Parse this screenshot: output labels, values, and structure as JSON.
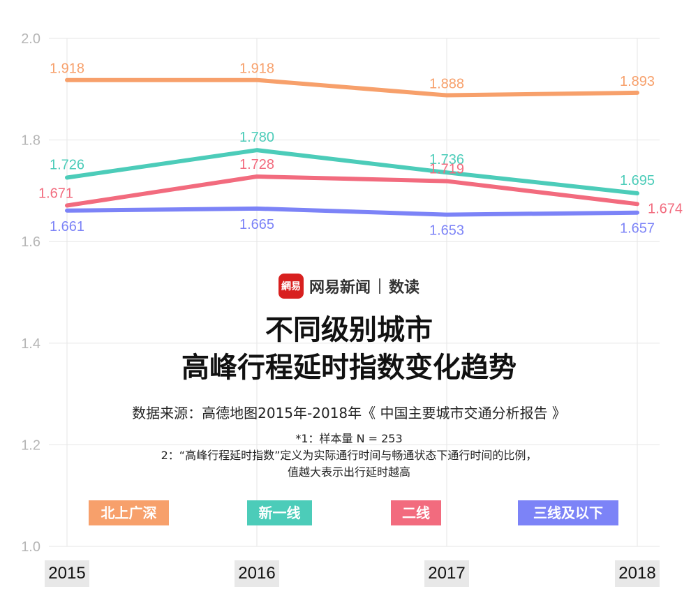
{
  "chart_data": {
    "type": "line",
    "x": [
      "2015",
      "2016",
      "2017",
      "2018"
    ],
    "ylim": [
      1.0,
      2.0
    ],
    "yticks": [
      "1.0",
      "1.2",
      "1.4",
      "1.6",
      "1.8",
      "2.0"
    ],
    "grid": true,
    "series": [
      {
        "name": "北上广深",
        "color": "#F7A06B",
        "values": [
          1.918,
          1.918,
          1.888,
          1.893
        ],
        "labels": [
          "1.918",
          "1.918",
          "1.888",
          "1.893"
        ]
      },
      {
        "name": "新一线",
        "color": "#4CCCB9",
        "values": [
          1.726,
          1.78,
          1.736,
          1.695
        ],
        "labels": [
          "1.726",
          "1.780",
          "1.736",
          "1.695"
        ]
      },
      {
        "name": "二线",
        "color": "#F26B7E",
        "values": [
          1.671,
          1.728,
          1.719,
          1.674
        ],
        "labels": [
          "1.671",
          "1.728",
          "1.719",
          "1.674"
        ]
      },
      {
        "name": "三线及以下",
        "color": "#7C83F7",
        "values": [
          1.661,
          1.665,
          1.653,
          1.657
        ],
        "labels": [
          "1.661",
          "1.665",
          "1.653",
          "1.657"
        ]
      }
    ]
  },
  "brand": {
    "logo_text": "網易",
    "name": "网易新闻",
    "sub": "数读"
  },
  "title": {
    "line1": "不同级别城市",
    "line2": "高峰行程延时指数变化趋势"
  },
  "source": "数据来源：高德地图2015年-2018年《 中国主要城市交通分析报告 》",
  "notes": {
    "n1": "*1：样本量 N = 253",
    "n2": "2：“高峰行程延时指数”定义为实际通行时间与畅通状态下通行时间的比例，",
    "n3": "值越大表示出行延时越高"
  }
}
